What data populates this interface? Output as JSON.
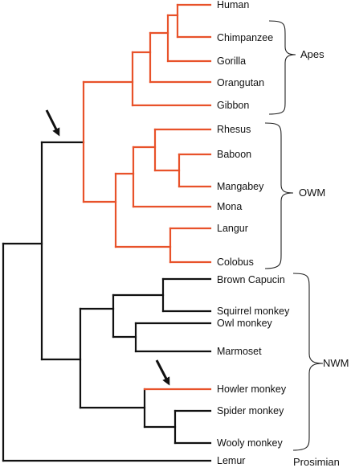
{
  "colors": {
    "highlight": "#e8522a",
    "default": "#111111"
  },
  "taxa": [
    "Human",
    "Chimpanzee",
    "Gorilla",
    "Orangutan",
    "Gibbon",
    "Rhesus",
    "Baboon",
    "Mangabey",
    "Mona",
    "Langur",
    "Colobus",
    "Brown Capucin",
    "Squirrel monkey",
    "Owl monkey",
    "Marmoset",
    "Howler monkey",
    "Spider monkey",
    "Wooly monkey",
    "Lemur"
  ],
  "groups": {
    "apes": "Apes",
    "owm": "OWM",
    "nwm": "NWM",
    "prosimian": "Prosimian"
  },
  "markers": [
    {
      "name": "arrow-icon",
      "description_target": "catarrhine-node"
    },
    {
      "name": "arrow-icon",
      "description_target": "howler-branch"
    }
  ]
}
